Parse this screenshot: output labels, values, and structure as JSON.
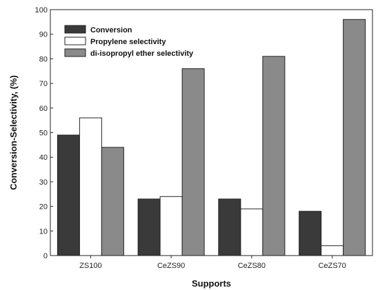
{
  "chart_data": {
    "type": "bar",
    "categories": [
      "ZS100",
      "CeZS90",
      "CeZS80",
      "CeZS70"
    ],
    "series": [
      {
        "name": "Conversion",
        "values": [
          49,
          23,
          23,
          18
        ],
        "color": "#3a3a3a"
      },
      {
        "name": "Propylene selectivity",
        "values": [
          56,
          24,
          19,
          4
        ],
        "color": "#ffffff"
      },
      {
        "name": "di-isopropyl ether selectivity",
        "values": [
          44,
          76,
          81,
          96
        ],
        "color": "#8a8a8a"
      }
    ],
    "xlabel": "Supports",
    "ylabel": "Conversion-Selectivity, (%)",
    "ylim": [
      0,
      100
    ],
    "yticks": [
      0,
      10,
      20,
      30,
      40,
      50,
      60,
      70,
      80,
      90,
      100
    ],
    "grid": false,
    "legend": "top-left"
  }
}
